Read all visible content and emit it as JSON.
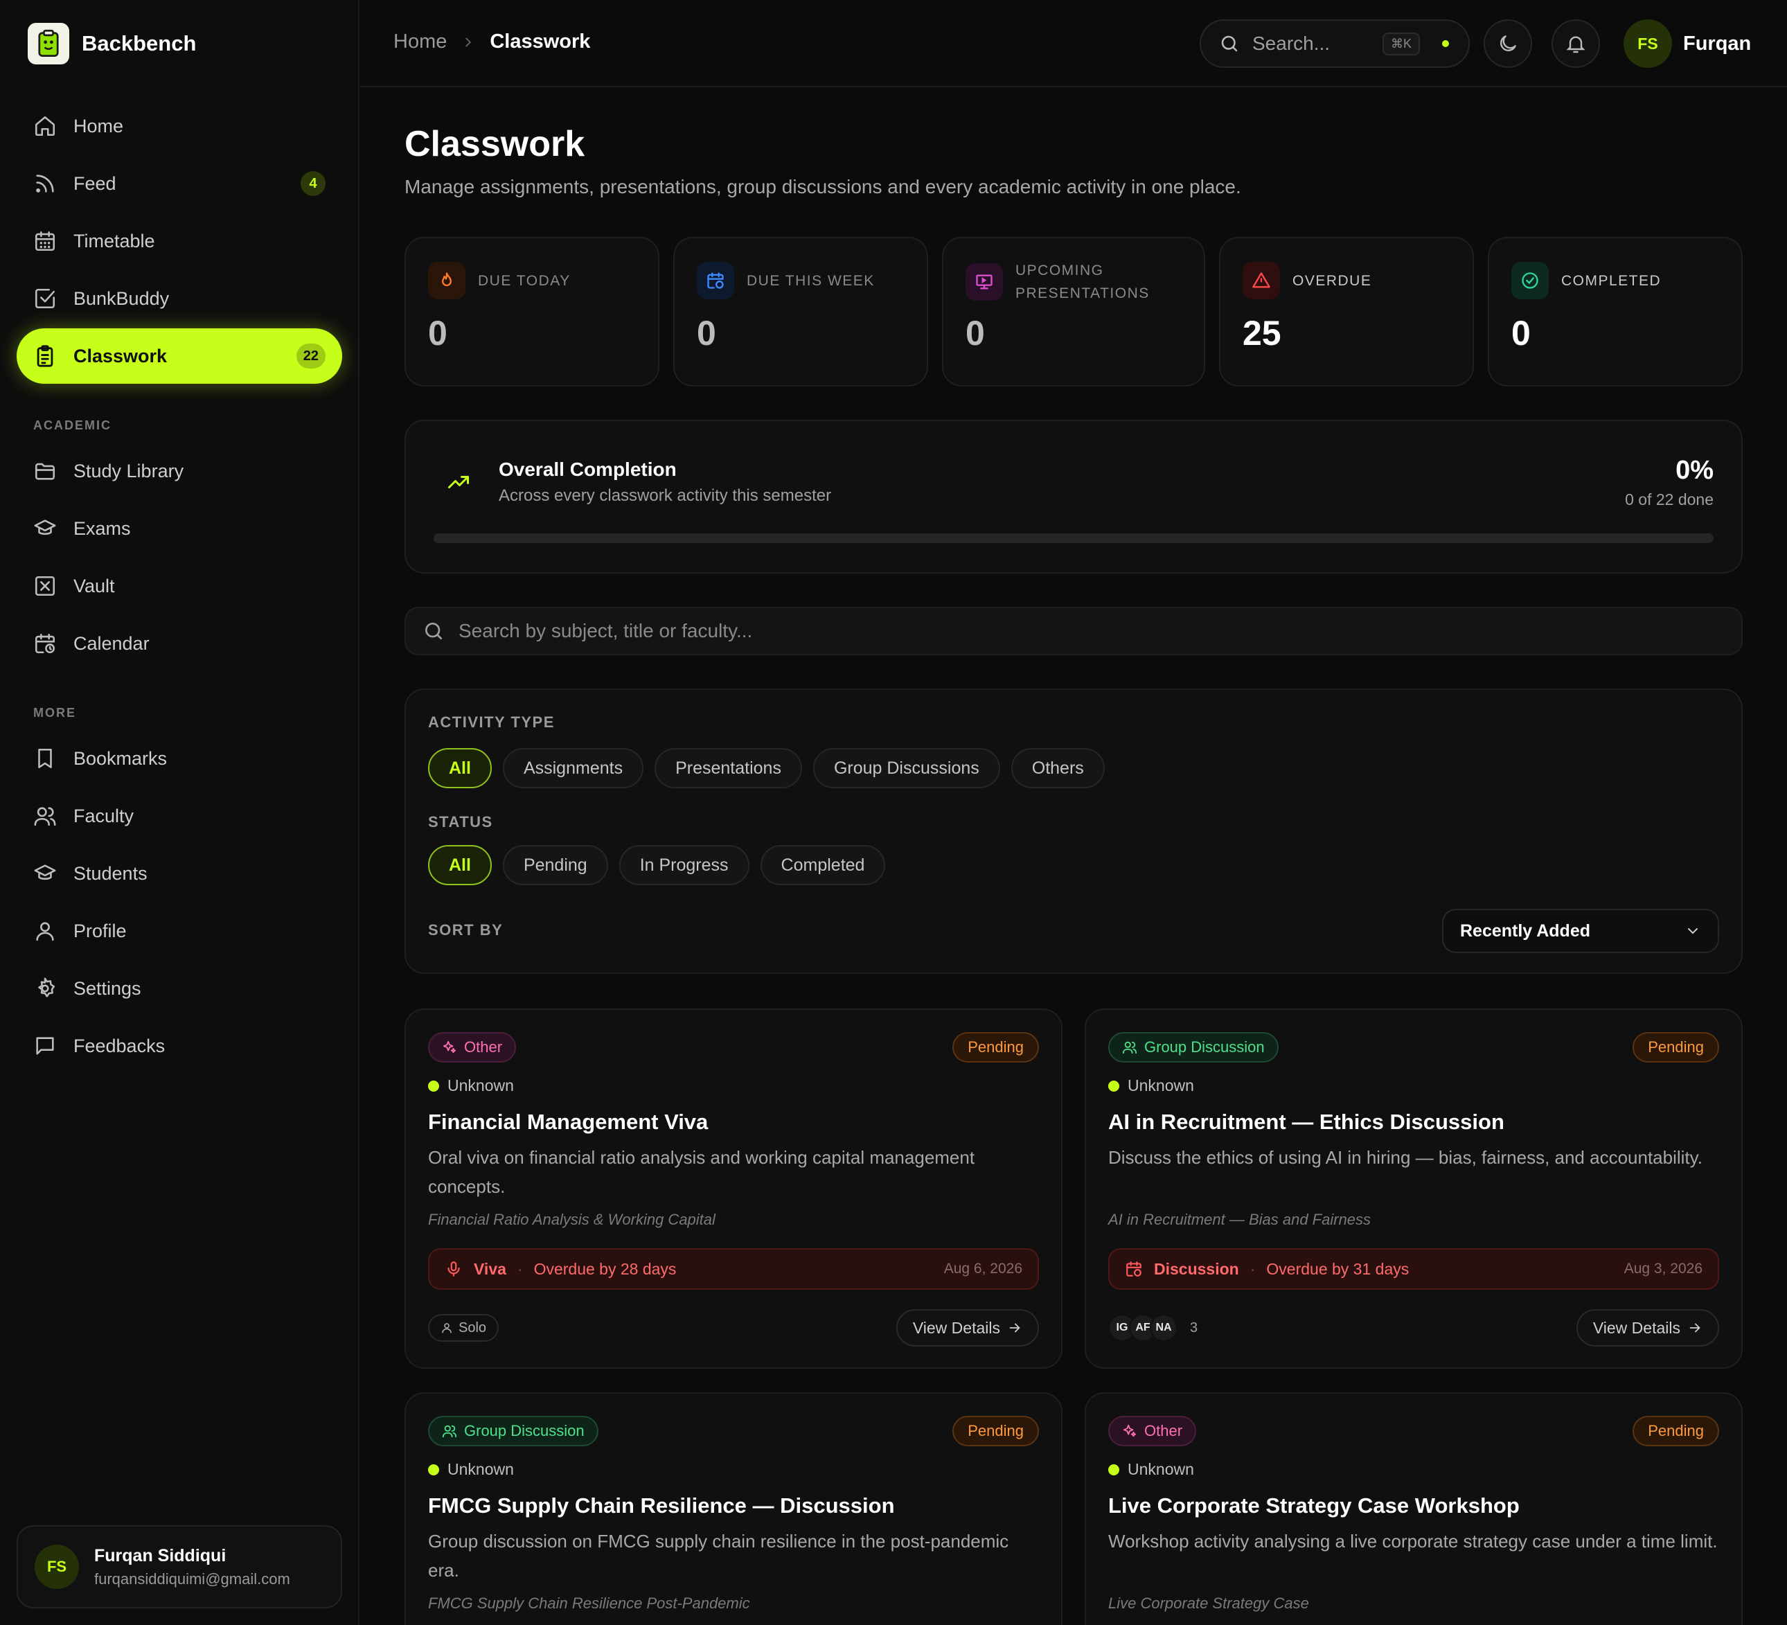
{
  "brand": {
    "name": "Backbench"
  },
  "sidebar": {
    "items": [
      {
        "label": "Home",
        "icon": "home-icon"
      },
      {
        "label": "Feed",
        "icon": "rss-icon",
        "badge": "4"
      },
      {
        "label": "Timetable",
        "icon": "calendar-grid-icon"
      },
      {
        "label": "BunkBuddy",
        "icon": "check-square-icon"
      },
      {
        "label": "Classwork",
        "icon": "clipboard-icon",
        "badge": "22",
        "active": true
      }
    ],
    "section_academic": "ACADEMIC",
    "academic": [
      {
        "label": "Study Library",
        "icon": "folder-icon"
      },
      {
        "label": "Exams",
        "icon": "graduation-cap-icon"
      },
      {
        "label": "Vault",
        "icon": "vault-icon"
      },
      {
        "label": "Calendar",
        "icon": "calendar-clock-icon"
      }
    ],
    "section_more": "MORE",
    "more": [
      {
        "label": "Bookmarks",
        "icon": "bookmark-icon"
      },
      {
        "label": "Faculty",
        "icon": "users-icon"
      },
      {
        "label": "Students",
        "icon": "graduation-cap-icon"
      },
      {
        "label": "Profile",
        "icon": "user-icon"
      },
      {
        "label": "Settings",
        "icon": "gear-icon"
      },
      {
        "label": "Feedbacks",
        "icon": "message-icon"
      }
    ],
    "user": {
      "initials": "FS",
      "name": "Furqan Siddiqui",
      "email": "furqansiddiquimi@gmail.com"
    }
  },
  "header": {
    "breadcrumb": {
      "home": "Home",
      "current": "Classwork"
    },
    "search_placeholder": "Search...",
    "shortcut": "⌘K",
    "user_initials": "FS",
    "user_name": "Furqan"
  },
  "page": {
    "title": "Classwork",
    "subtitle": "Manage assignments, presentations, group discussions and every academic activity in one place."
  },
  "stats": [
    {
      "label": "DUE TODAY",
      "value": "0",
      "icon": "flame-icon",
      "color": "#ff7a2e",
      "bg": "#2a1608"
    },
    {
      "label": "DUE THIS WEEK",
      "value": "0",
      "icon": "calendar-clock-icon",
      "color": "#3d8bff",
      "bg": "#0d1a2e"
    },
    {
      "label": "UPCOMING PRESENTATIONS",
      "value": "0",
      "icon": "presentation-icon",
      "color": "#d94fd0",
      "bg": "#2a0f28"
    },
    {
      "label": "OVERDUE",
      "value": "25",
      "icon": "alert-triangle-icon",
      "color": "#ff4a4a",
      "bg": "#2e0e0e"
    },
    {
      "label": "COMPLETED",
      "value": "0",
      "icon": "check-circle-icon",
      "color": "#2fd99a",
      "bg": "#0c2a20"
    }
  ],
  "completion": {
    "title": "Overall Completion",
    "subtitle": "Across every classwork activity this semester",
    "percent_label": "0%",
    "percent": 0,
    "count_label": "0 of 22 done"
  },
  "search": {
    "placeholder": "Search by subject, title or faculty..."
  },
  "filters": {
    "activity_label": "ACTIVITY TYPE",
    "activity": [
      "All",
      "Assignments",
      "Presentations",
      "Group Discussions",
      "Others"
    ],
    "status_label": "STATUS",
    "status": [
      "All",
      "Pending",
      "In Progress",
      "Completed"
    ],
    "sort_label": "SORT BY",
    "sort_value": "Recently Added"
  },
  "cards": [
    {
      "tag": "Other",
      "tag_type": "other",
      "status": "Pending",
      "meta": "Unknown",
      "title": "Financial Management Viva",
      "desc": "Oral viva on financial ratio analysis and working capital management concepts.",
      "topic": "Financial Ratio Analysis & Working Capital",
      "kind": "Viva",
      "overdue": "Overdue by 28 days",
      "date": "Aug 6, 2026",
      "due_icon": "mic-icon",
      "mode": "Solo",
      "action": "View Details"
    },
    {
      "tag": "Group Discussion",
      "tag_type": "gd",
      "status": "Pending",
      "meta": "Unknown",
      "title": "AI in Recruitment — Ethics Discussion",
      "desc": "Discuss the ethics of using AI in hiring — bias, fairness, and accountability.",
      "topic": "AI in Recruitment — Bias and Fairness",
      "kind": "Discussion",
      "overdue": "Overdue by 31 days",
      "date": "Aug 3, 2026",
      "due_icon": "calendar-clock-icon",
      "members": [
        "IG",
        "AF",
        "NA"
      ],
      "member_count": "3",
      "action": "View Details"
    },
    {
      "tag": "Group Discussion",
      "tag_type": "gd",
      "status": "Pending",
      "meta": "Unknown",
      "title": "FMCG Supply Chain Resilience — Discussion",
      "desc": "Group discussion on FMCG supply chain resilience in the post-pandemic era.",
      "topic": "FMCG Supply Chain Resilience Post-Pandemic"
    },
    {
      "tag": "Other",
      "tag_type": "other",
      "status": "Pending",
      "meta": "Unknown",
      "title": "Live Corporate Strategy Case Workshop",
      "desc": "Workshop activity analysing a live corporate strategy case under a time limit.",
      "topic": "Live Corporate Strategy Case"
    }
  ]
}
